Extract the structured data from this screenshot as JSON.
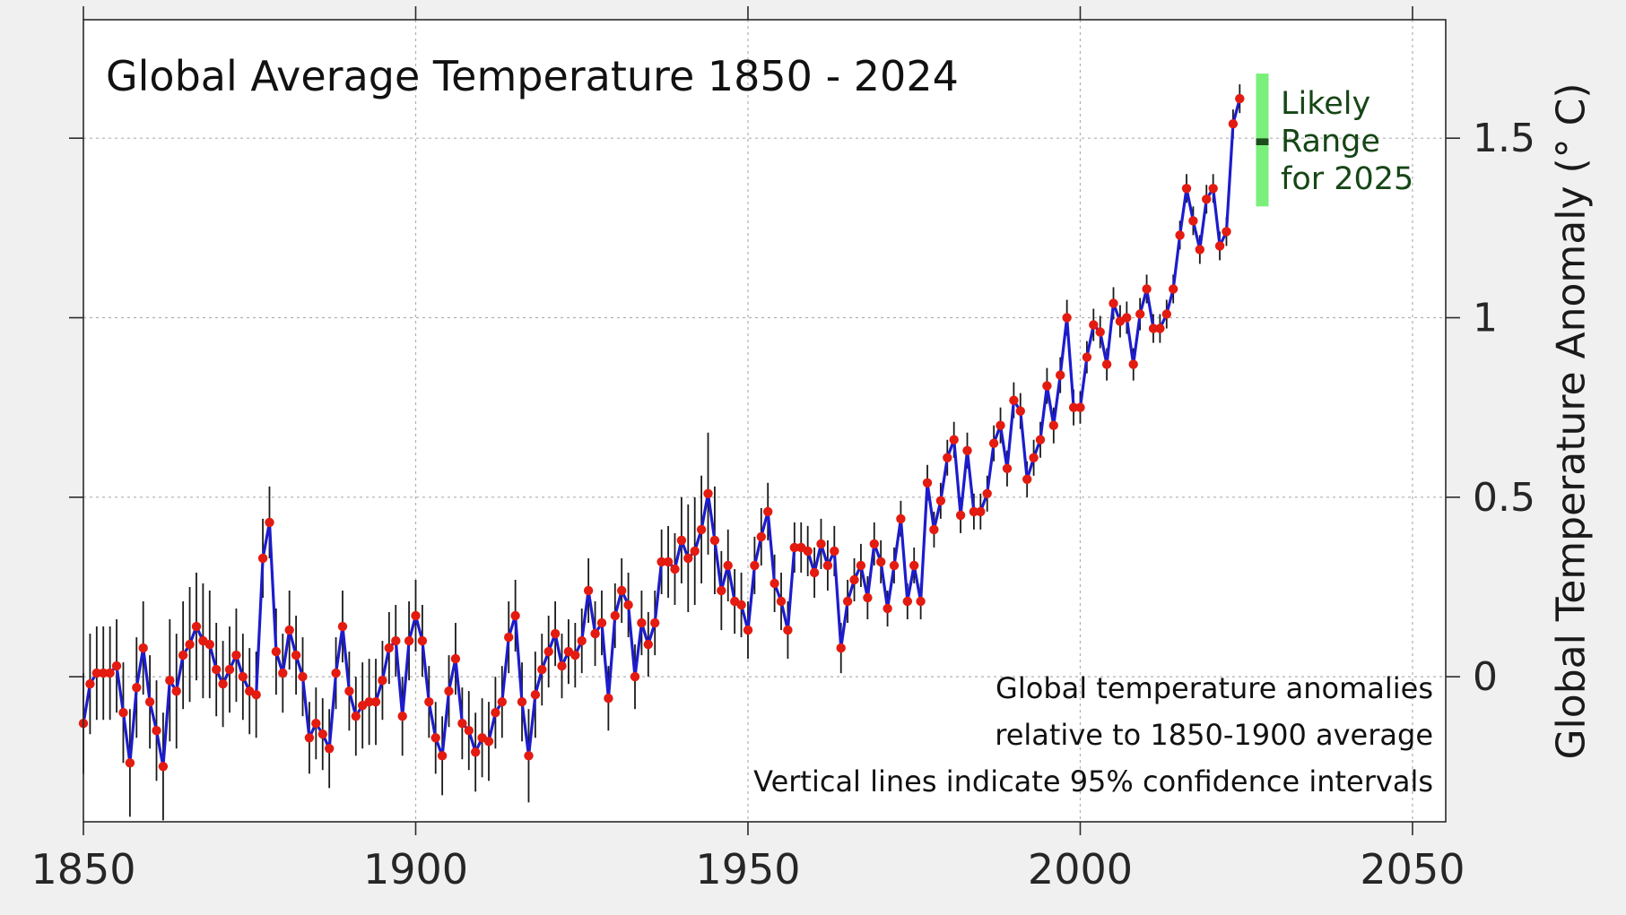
{
  "title": "Global Average Temperature 1850 - 2024",
  "y_axis_label": "Global Temperature Anomaly (° C)",
  "annotation": {
    "lines": [
      "Global temperature anomalies",
      "relative to 1850-1900 average",
      "Vertical lines indicate 95% confidence intervals"
    ]
  },
  "colors": {
    "background": "#f0f0f0",
    "plot_background": "#ffffff",
    "line": "#1c1ccd",
    "marker": "#e31b10",
    "error_bar": "#1a1a1a",
    "grid": "#b0b0b0",
    "spine": "#2a2a2a",
    "tick": "#2a2a2a",
    "tick_label": "#262626",
    "likely_bar": "#7bef7b",
    "likely_tick": "#1d4d1d",
    "likely_text": "#164616"
  },
  "chart_data": {
    "type": "line",
    "title": "Global Average Temperature 1850 - 2024",
    "xlabel": "",
    "ylabel": "Global Temperature Anomaly (° C)",
    "series_name": "Annual global mean temperature anomaly with 95% confidence intervals",
    "grid": "dashed",
    "legend_position": "none",
    "xlim": [
      1850,
      2055
    ],
    "ylim": [
      -0.404,
      1.83
    ],
    "x_ticks": [
      1850,
      1900,
      1950,
      2000,
      2050
    ],
    "x_tick_labels": [
      "1850",
      "1900",
      "1950",
      "2000",
      "2050"
    ],
    "y_ticks": [
      0,
      0.5,
      1,
      1.5
    ],
    "y_tick_labels": [
      "0",
      "0.5",
      "1",
      "1.5"
    ],
    "x_start_year": 1850,
    "x_step": 1,
    "years": [
      1850,
      1851,
      1852,
      1853,
      1854,
      1855,
      1856,
      1857,
      1858,
      1859,
      1860,
      1861,
      1862,
      1863,
      1864,
      1865,
      1866,
      1867,
      1868,
      1869,
      1870,
      1871,
      1872,
      1873,
      1874,
      1875,
      1876,
      1877,
      1878,
      1879,
      1880,
      1881,
      1882,
      1883,
      1884,
      1885,
      1886,
      1887,
      1888,
      1889,
      1890,
      1891,
      1892,
      1893,
      1894,
      1895,
      1896,
      1897,
      1898,
      1899,
      1900,
      1901,
      1902,
      1903,
      1904,
      1905,
      1906,
      1907,
      1908,
      1909,
      1910,
      1911,
      1912,
      1913,
      1914,
      1915,
      1916,
      1917,
      1918,
      1919,
      1920,
      1921,
      1922,
      1923,
      1924,
      1925,
      1926,
      1927,
      1928,
      1929,
      1930,
      1931,
      1932,
      1933,
      1934,
      1935,
      1936,
      1937,
      1938,
      1939,
      1940,
      1941,
      1942,
      1943,
      1944,
      1945,
      1946,
      1947,
      1948,
      1949,
      1950,
      1951,
      1952,
      1953,
      1954,
      1955,
      1956,
      1957,
      1958,
      1959,
      1960,
      1961,
      1962,
      1963,
      1964,
      1965,
      1966,
      1967,
      1968,
      1969,
      1970,
      1971,
      1972,
      1973,
      1974,
      1975,
      1976,
      1977,
      1978,
      1979,
      1980,
      1981,
      1982,
      1983,
      1984,
      1985,
      1986,
      1987,
      1988,
      1989,
      1990,
      1991,
      1992,
      1993,
      1994,
      1995,
      1996,
      1997,
      1998,
      1999,
      2000,
      2001,
      2002,
      2003,
      2004,
      2005,
      2006,
      2007,
      2008,
      2009,
      2010,
      2011,
      2012,
      2013,
      2014,
      2015,
      2016,
      2017,
      2018,
      2019,
      2020,
      2021,
      2022,
      2023,
      2024
    ],
    "values": [
      -0.13,
      -0.02,
      0.01,
      0.01,
      0.01,
      0.03,
      -0.1,
      -0.24,
      -0.03,
      0.08,
      -0.07,
      -0.15,
      -0.25,
      -0.01,
      -0.04,
      0.06,
      0.09,
      0.14,
      0.1,
      0.09,
      0.02,
      -0.02,
      0.02,
      0.06,
      0.0,
      -0.04,
      -0.05,
      0.33,
      0.43,
      0.07,
      0.01,
      0.13,
      0.06,
      0.0,
      -0.17,
      -0.13,
      -0.16,
      -0.2,
      0.01,
      0.14,
      -0.04,
      -0.11,
      -0.08,
      -0.07,
      -0.07,
      -0.01,
      0.08,
      0.1,
      -0.11,
      0.1,
      0.17,
      0.1,
      -0.07,
      -0.17,
      -0.22,
      -0.04,
      0.05,
      -0.13,
      -0.15,
      -0.21,
      -0.17,
      -0.18,
      -0.1,
      -0.07,
      0.11,
      0.17,
      -0.07,
      -0.22,
      -0.05,
      0.02,
      0.07,
      0.12,
      0.03,
      0.07,
      0.06,
      0.1,
      0.24,
      0.12,
      0.15,
      -0.06,
      0.17,
      0.24,
      0.2,
      0.0,
      0.15,
      0.09,
      0.15,
      0.32,
      0.32,
      0.3,
      0.38,
      0.33,
      0.35,
      0.41,
      0.51,
      0.38,
      0.24,
      0.31,
      0.21,
      0.2,
      0.13,
      0.31,
      0.39,
      0.46,
      0.26,
      0.21,
      0.13,
      0.36,
      0.36,
      0.35,
      0.29,
      0.37,
      0.31,
      0.35,
      0.08,
      0.21,
      0.27,
      0.31,
      0.22,
      0.37,
      0.32,
      0.19,
      0.31,
      0.44,
      0.21,
      0.31,
      0.21,
      0.54,
      0.41,
      0.49,
      0.61,
      0.66,
      0.45,
      0.63,
      0.46,
      0.46,
      0.51,
      0.65,
      0.7,
      0.58,
      0.77,
      0.74,
      0.55,
      0.61,
      0.66,
      0.81,
      0.7,
      0.84,
      1.0,
      0.75,
      0.75,
      0.89,
      0.98,
      0.96,
      0.87,
      1.04,
      0.99,
      1.0,
      0.87,
      1.01,
      1.08,
      0.97,
      0.97,
      1.01,
      1.08,
      1.23,
      1.36,
      1.27,
      1.19,
      1.33,
      1.36,
      1.2,
      1.24,
      1.54,
      1.61
    ],
    "ci95_half_width": [
      0.14,
      0.14,
      0.13,
      0.13,
      0.13,
      0.13,
      0.14,
      0.15,
      0.14,
      0.13,
      0.13,
      0.14,
      0.15,
      0.17,
      0.16,
      0.15,
      0.16,
      0.15,
      0.16,
      0.15,
      0.13,
      0.12,
      0.12,
      0.13,
      0.12,
      0.12,
      0.12,
      0.11,
      0.1,
      0.12,
      0.11,
      0.11,
      0.11,
      0.11,
      0.1,
      0.1,
      0.1,
      0.11,
      0.1,
      0.1,
      0.11,
      0.11,
      0.12,
      0.12,
      0.12,
      0.11,
      0.1,
      0.1,
      0.11,
      0.11,
      0.1,
      0.1,
      0.1,
      0.1,
      0.11,
      0.1,
      0.1,
      0.1,
      0.11,
      0.11,
      0.11,
      0.11,
      0.1,
      0.1,
      0.1,
      0.1,
      0.11,
      0.13,
      0.12,
      0.1,
      0.1,
      0.09,
      0.09,
      0.09,
      0.09,
      0.09,
      0.09,
      0.09,
      0.09,
      0.09,
      0.09,
      0.09,
      0.09,
      0.09,
      0.09,
      0.09,
      0.09,
      0.09,
      0.1,
      0.1,
      0.12,
      0.15,
      0.15,
      0.15,
      0.17,
      0.15,
      0.11,
      0.1,
      0.09,
      0.09,
      0.08,
      0.08,
      0.08,
      0.08,
      0.08,
      0.08,
      0.08,
      0.07,
      0.07,
      0.07,
      0.07,
      0.07,
      0.07,
      0.07,
      0.07,
      0.06,
      0.06,
      0.06,
      0.06,
      0.06,
      0.06,
      0.05,
      0.05,
      0.05,
      0.05,
      0.05,
      0.05,
      0.05,
      0.05,
      0.05,
      0.05,
      0.05,
      0.05,
      0.05,
      0.05,
      0.05,
      0.05,
      0.05,
      0.05,
      0.05,
      0.05,
      0.05,
      0.05,
      0.05,
      0.05,
      0.05,
      0.05,
      0.05,
      0.05,
      0.05,
      0.045,
      0.045,
      0.045,
      0.045,
      0.045,
      0.045,
      0.045,
      0.045,
      0.045,
      0.045,
      0.04,
      0.04,
      0.04,
      0.04,
      0.04,
      0.04,
      0.04,
      0.04,
      0.04,
      0.04,
      0.04,
      0.04,
      0.04,
      0.04,
      0.04
    ],
    "likely_range": {
      "label_lines": [
        "Likely",
        "Range",
        "for 2025"
      ],
      "year": 2027.4,
      "low": 1.31,
      "high": 1.68,
      "central": 1.49
    }
  }
}
